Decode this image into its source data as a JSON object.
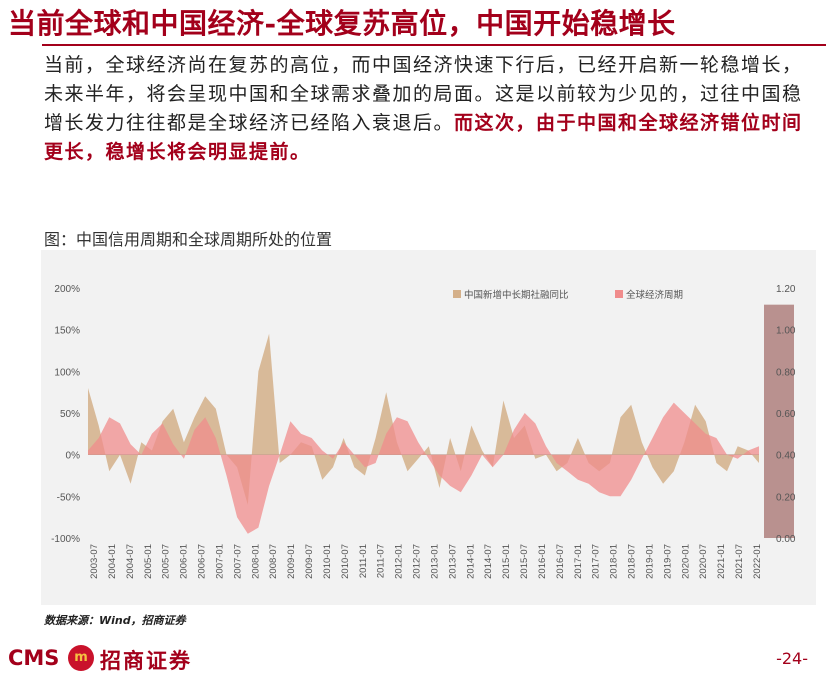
{
  "header": {
    "title": "当前全球和中国经济-全球复苏高位，中国开始稳增长"
  },
  "body": {
    "paragraph": "当前，全球经济尚在复苏的高位，而中国经济快速下行后，已经开启新一轮稳增长，未来半年，将会呈现中国和全球需求叠加的局面。这是以前较为少见的，过往中国稳增长发力往往都是全球经济已经陷入衰退后。",
    "emphasis": "而这次，由于中国和全球经济错位时间更长，稳增长将会明显提前。"
  },
  "chart_caption": "图：中国信用周期和全球周期所处的位置",
  "chart_data": {
    "type": "area",
    "x_labels": [
      "2003-07",
      "2004-01",
      "2004-07",
      "2005-01",
      "2005-07",
      "2006-01",
      "2006-07",
      "2007-01",
      "2007-07",
      "2008-01",
      "2008-07",
      "2009-01",
      "2009-07",
      "2010-01",
      "2010-07",
      "2011-01",
      "2011-07",
      "2012-01",
      "2012-07",
      "2013-01",
      "2013-07",
      "2014-01",
      "2014-07",
      "2015-01",
      "2015-07",
      "2016-01",
      "2016-07",
      "2017-01",
      "2017-07",
      "2018-01",
      "2018-07",
      "2019-01",
      "2019-07",
      "2020-01",
      "2020-07",
      "2021-01",
      "2021-07",
      "2022-01"
    ],
    "left_axis": {
      "ticks": [
        "200%",
        "150%",
        "100%",
        "50%",
        "0%",
        "-50%",
        "-100%"
      ],
      "range": [
        -100,
        200
      ],
      "unit": "%"
    },
    "right_axis": {
      "ticks": [
        "1.20",
        "1.00",
        "0.80",
        "0.60",
        "0.40",
        "0.20",
        "0.00"
      ],
      "range": [
        0.0,
        1.2
      ]
    },
    "legend_position": "top-right",
    "grid": false,
    "series": [
      {
        "name": "中国新增中长期社融同比",
        "axis": "left",
        "color": "#d4b08a",
        "values": [
          80,
          35,
          -20,
          0,
          -35,
          15,
          5,
          40,
          55,
          15,
          45,
          70,
          55,
          0,
          -15,
          -60,
          100,
          145,
          -10,
          0,
          15,
          10,
          -30,
          -15,
          20,
          -15,
          -25,
          20,
          75,
          15,
          -20,
          -5,
          10,
          -40,
          20,
          -20,
          35,
          5,
          -15,
          65,
          20,
          35,
          -5,
          0,
          -20,
          -10,
          20,
          -10,
          -20,
          -10,
          45,
          60,
          15,
          -15,
          -35,
          -20,
          15,
          60,
          40,
          -10,
          -20,
          10,
          5,
          -10
        ]
      },
      {
        "name": "全球经济周期",
        "axis": "right",
        "color": "#f08c8c",
        "values": [
          0.42,
          0.48,
          0.58,
          0.55,
          0.45,
          0.4,
          0.5,
          0.55,
          0.45,
          0.38,
          0.52,
          0.58,
          0.48,
          0.3,
          0.1,
          0.02,
          0.05,
          0.25,
          0.4,
          0.56,
          0.5,
          0.48,
          0.42,
          0.38,
          0.46,
          0.4,
          0.34,
          0.36,
          0.5,
          0.58,
          0.56,
          0.46,
          0.38,
          0.3,
          0.25,
          0.22,
          0.3,
          0.4,
          0.34,
          0.4,
          0.52,
          0.6,
          0.55,
          0.44,
          0.36,
          0.32,
          0.28,
          0.26,
          0.22,
          0.2,
          0.2,
          0.28,
          0.38,
          0.48,
          0.58,
          0.65,
          0.6,
          0.55,
          0.5,
          0.48,
          0.4,
          0.38,
          0.42,
          0.44
        ]
      }
    ],
    "highlight": {
      "label_start": "2022-01",
      "color": "#b38684"
    }
  },
  "source": "数据来源：Wind，招商证券",
  "footer": {
    "logo_text": "CMS",
    "logo_mark": "m",
    "company": "招商证券",
    "page": "-24-"
  }
}
